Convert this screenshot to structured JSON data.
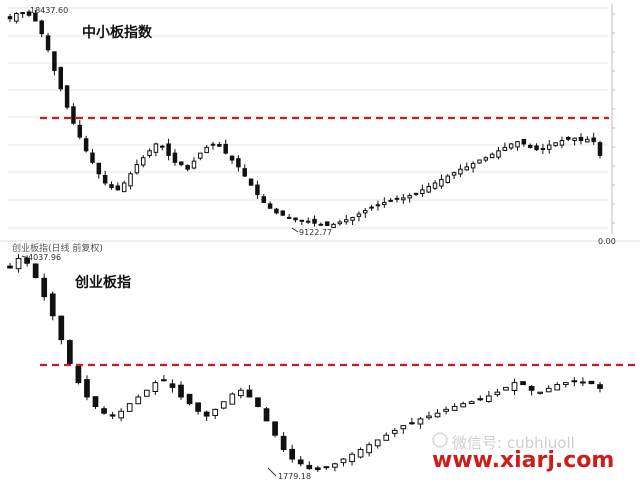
{
  "chart_data": [
    {
      "type": "candlestick",
      "title": "中小板指数",
      "annotations": {
        "high_label": "18437.60",
        "low_label": "9122.77"
      },
      "resistance_line": {
        "style": "dashed",
        "color": "#d01b1b"
      },
      "close": [
        18150,
        18380,
        18420,
        18300,
        18050,
        17500,
        16800,
        15900,
        15100,
        14300,
        13600,
        13000,
        12400,
        11900,
        11400,
        11000,
        10800,
        10700,
        11000,
        11400,
        11800,
        12100,
        12400,
        12700,
        12600,
        12200,
        11900,
        11800,
        11600,
        11950,
        12300,
        12550,
        12650,
        12600,
        12300,
        12000,
        11700,
        11300,
        10900,
        10500,
        10150,
        9900,
        9700,
        9600,
        9500,
        9400,
        9350,
        9300,
        9250,
        9200,
        9150,
        9200,
        9300,
        9400,
        9500,
        9650,
        9800,
        9950,
        10050,
        10150,
        10200,
        10300,
        10350,
        10450,
        10550,
        10700,
        10850,
        11000,
        11150,
        11300,
        11450,
        11600,
        11700,
        11850,
        12000,
        12100,
        12250,
        12400,
        12550,
        12700,
        12800,
        12700,
        12550,
        12450,
        12500,
        12650,
        12750,
        12850,
        12900,
        12950,
        12850,
        12900,
        12800,
        12200
      ]
    },
    {
      "type": "candlestick",
      "title": "创业板指",
      "header_label": "创业板指(日线 前复权)",
      "annotations": {
        "high_label": "4037.96",
        "low_label": "1779.18"
      },
      "resistance_line": {
        "style": "dashed",
        "color": "#d01b1b"
      },
      "close": [
        3900,
        4000,
        3950,
        3800,
        3600,
        3400,
        3150,
        2900,
        2700,
        2550,
        2450,
        2380,
        2350,
        2400,
        2480,
        2550,
        2620,
        2700,
        2720,
        2650,
        2550,
        2480,
        2400,
        2350,
        2420,
        2500,
        2580,
        2620,
        2550,
        2450,
        2300,
        2150,
        2000,
        1900,
        1850,
        1800,
        1790,
        1820,
        1850,
        1900,
        1950,
        2000,
        2050,
        2100,
        2150,
        2200,
        2250,
        2280,
        2320,
        2350,
        2380,
        2420,
        2450,
        2480,
        2500,
        2520,
        2560,
        2600,
        2650,
        2700,
        2680,
        2620,
        2600,
        2640,
        2680,
        2700,
        2720,
        2700,
        2690,
        2640
      ]
    }
  ],
  "watermark": "微信号: cubhluoll",
  "site_url": "www.xiarj.com",
  "right_edge_label": "0.00",
  "colors": {
    "accent": "#d01b1b",
    "candle": "#111111",
    "grid": "#bfbfbf"
  }
}
